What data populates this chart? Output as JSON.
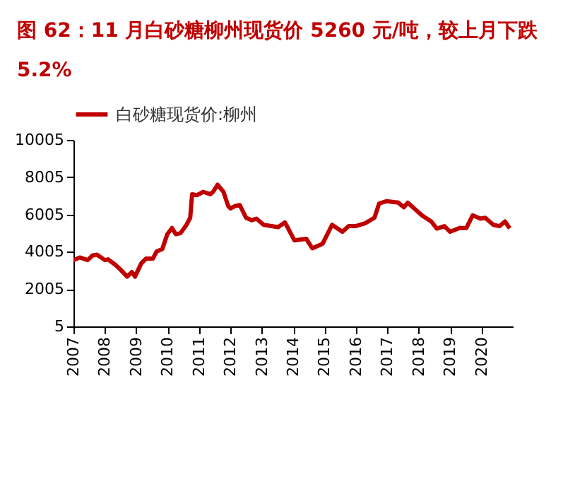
{
  "chart_data": {
    "type": "line",
    "title": "图 62：11 月白砂糖柳州现货价 5260 元/吨，较上月下跌 5.2%",
    "xlim": [
      2007,
      2021
    ],
    "xticks": [
      2007,
      2008,
      2009,
      2010,
      2011,
      2012,
      2013,
      2014,
      2015,
      2016,
      2017,
      2018,
      2019,
      2020
    ],
    "ylim": [
      5,
      10005
    ],
    "yticks": [
      5,
      2005,
      4005,
      6005,
      8005,
      10005
    ],
    "grid": false,
    "legend": "top",
    "marker": "none",
    "line_style": "solid",
    "series": [
      {
        "name": "白砂糖现货价:柳州",
        "color": "#c00000",
        "x": [
          2007.0,
          2007.2,
          2007.45,
          2007.6,
          2007.75,
          2008.0,
          2008.1,
          2008.34,
          2008.5,
          2008.71,
          2008.86,
          2008.96,
          2009.16,
          2009.31,
          2009.53,
          2009.65,
          2009.83,
          2009.99,
          2010.14,
          2010.26,
          2010.41,
          2010.6,
          2010.72,
          2010.78,
          2010.93,
          2011.13,
          2011.36,
          2011.45,
          2011.59,
          2011.78,
          2011.93,
          2012.0,
          2012.15,
          2012.3,
          2012.5,
          2012.68,
          2012.83,
          2013.06,
          2013.52,
          2013.74,
          2014.04,
          2014.42,
          2014.61,
          2014.94,
          2015.24,
          2015.57,
          2015.77,
          2015.99,
          2016.29,
          2016.59,
          2016.74,
          2016.97,
          2017.35,
          2017.53,
          2017.65,
          2018.1,
          2018.4,
          2018.58,
          2018.82,
          2019.0,
          2019.3,
          2019.52,
          2019.72,
          2019.97,
          2020.12,
          2020.38,
          2020.58,
          2020.75,
          2020.9
        ],
        "values": [
          3560,
          3700,
          3560,
          3800,
          3850,
          3560,
          3600,
          3300,
          3050,
          2670,
          2920,
          2670,
          3380,
          3640,
          3640,
          4020,
          4150,
          4950,
          5280,
          4950,
          5000,
          5450,
          5830,
          7090,
          7040,
          7220,
          7090,
          7220,
          7600,
          7220,
          6460,
          6330,
          6460,
          6510,
          5830,
          5700,
          5780,
          5450,
          5330,
          5580,
          4620,
          4700,
          4190,
          4440,
          5450,
          5080,
          5380,
          5380,
          5530,
          5830,
          6590,
          6720,
          6640,
          6390,
          6640,
          5960,
          5630,
          5250,
          5380,
          5080,
          5280,
          5280,
          5960,
          5780,
          5830,
          5450,
          5380,
          5630,
          5260
        ]
      }
    ]
  }
}
